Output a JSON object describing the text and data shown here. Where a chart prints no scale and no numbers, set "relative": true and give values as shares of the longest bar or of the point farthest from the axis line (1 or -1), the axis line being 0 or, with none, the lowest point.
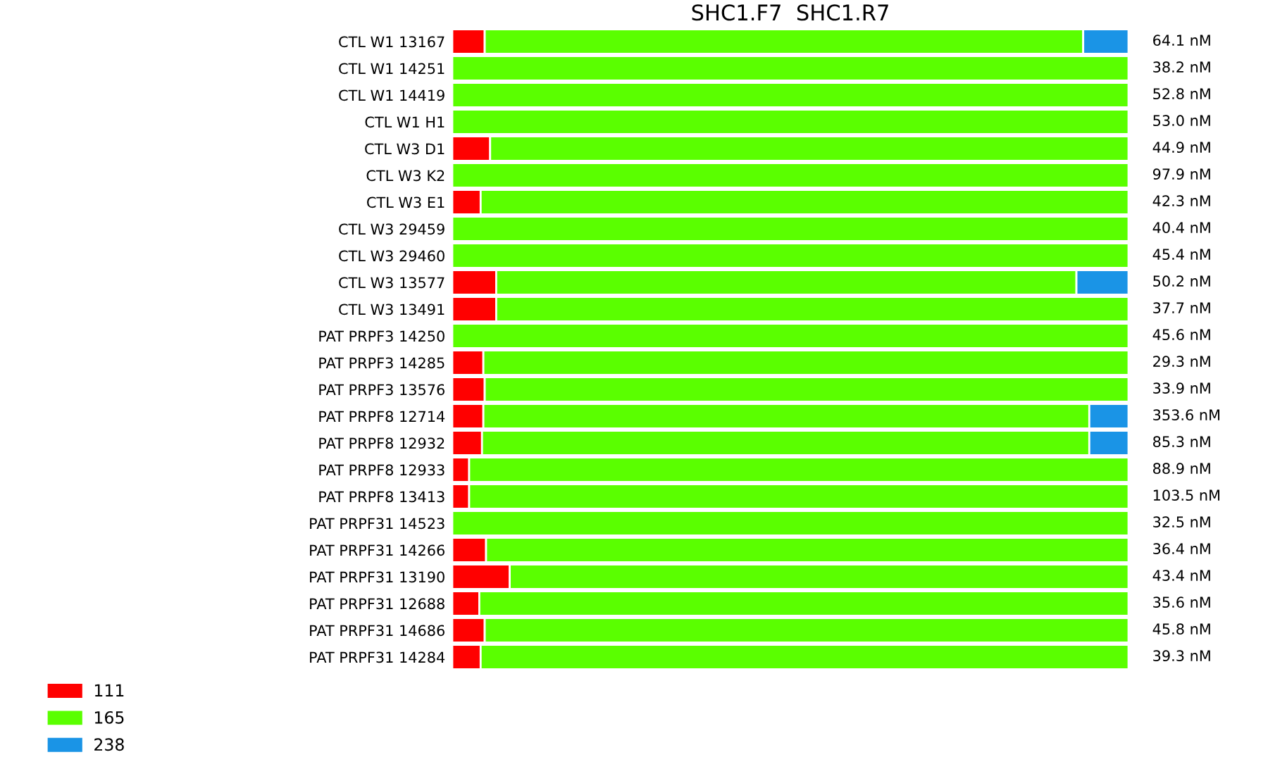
{
  "chart_data": {
    "type": "bar",
    "orientation": "horizontal",
    "stacked": true,
    "relative": true,
    "title": "SHC1.F7  SHC1.R7",
    "categories": [
      "CTL W1 13167",
      "CTL W1 14251",
      "CTL W1 14419",
      "CTL W1 H1",
      "CTL W3 D1",
      "CTL W3 K2",
      "CTL W3 E1",
      "CTL W3 29459",
      "CTL W3 29460",
      "CTL W3 13577",
      "CTL W3 13491",
      "PAT PRPF3 14250",
      "PAT PRPF3 14285",
      "PAT PRPF3 13576",
      "PAT PRPF8 12714",
      "PAT PRPF8 12932",
      "PAT PRPF8 12933",
      "PAT PRPF8 13413",
      "PAT PRPF31 14523",
      "PAT PRPF31 14266",
      "PAT PRPF31 13190",
      "PAT PRPF31 12688",
      "PAT PRPF31 14686",
      "PAT PRPF31 14284"
    ],
    "series": [
      {
        "name": "111",
        "color": "#ff0000",
        "values": [
          0.048,
          0,
          0,
          0,
          0.056,
          0,
          0.042,
          0,
          0,
          0.065,
          0.065,
          0,
          0.046,
          0.048,
          0.046,
          0.044,
          0.025,
          0.025,
          0,
          0.05,
          0.085,
          0.04,
          0.048,
          0.042
        ]
      },
      {
        "name": "165",
        "color": "#5aff00",
        "values": [
          0.885,
          1,
          1,
          1,
          0.944,
          1,
          0.958,
          1,
          1,
          0.858,
          0.935,
          1,
          0.954,
          0.952,
          0.896,
          0.898,
          0.975,
          0.975,
          1,
          0.95,
          0.915,
          0.96,
          0.952,
          0.958
        ]
      },
      {
        "name": "238",
        "color": "#1a94e6",
        "values": [
          0.067,
          0,
          0,
          0,
          0,
          0,
          0,
          0,
          0,
          0.077,
          0,
          0,
          0,
          0,
          0.058,
          0.058,
          0,
          0,
          0,
          0,
          0,
          0,
          0,
          0
        ]
      }
    ],
    "annotations": [
      "64.1 nM",
      "38.2 nM",
      "52.8 nM",
      "53.0 nM",
      "44.9 nM",
      "97.9 nM",
      "42.3 nM",
      "40.4 nM",
      "45.4 nM",
      "50.2 nM",
      "37.7 nM",
      "45.6 nM",
      "29.3 nM",
      "33.9 nM",
      "353.6 nM",
      "85.3 nM",
      "88.9 nM",
      "103.5 nM",
      "32.5 nM",
      "36.4 nM",
      "43.4 nM",
      "35.6 nM",
      "45.8 nM",
      "39.3 nM"
    ],
    "legend": "bottom left",
    "tick_labels": "y",
    "grid": false
  }
}
